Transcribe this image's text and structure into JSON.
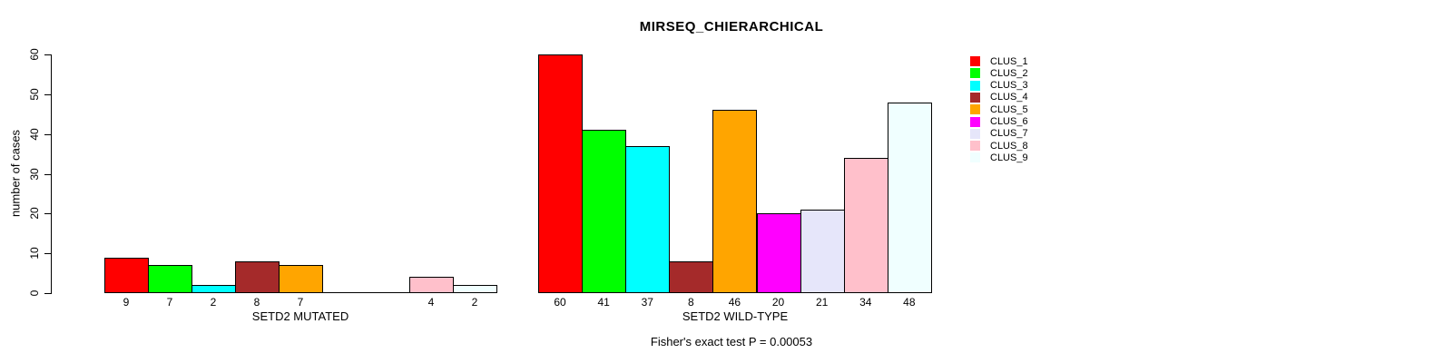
{
  "chart_data": {
    "type": "bar",
    "title": "MIRSEQ_CHIERARCHICAL",
    "ylabel": "number of cases",
    "xlabel": "",
    "ylim": [
      0,
      60
    ],
    "yticks": [
      "0",
      "10",
      "20",
      "30",
      "40",
      "50",
      "60"
    ],
    "grid": false,
    "legend_position": "right",
    "series_names": [
      "CLUS_1",
      "CLUS_2",
      "CLUS_3",
      "CLUS_4",
      "CLUS_5",
      "CLUS_6",
      "CLUS_7",
      "CLUS_8",
      "CLUS_9"
    ],
    "series_colors": [
      "#FF0000",
      "#00FF00",
      "#00FFFF",
      "#A52A2A",
      "#FFA500",
      "#FF00FF",
      "#E6E6FA",
      "#FFC0CB",
      "#F0FFFF"
    ],
    "groups": [
      {
        "label": "SETD2 MUTATED",
        "values": [
          9,
          7,
          2,
          8,
          7,
          0,
          0,
          4,
          2
        ],
        "bar_labels": [
          "9",
          "7",
          "2",
          "8",
          "7",
          "",
          "",
          "4",
          "2"
        ]
      },
      {
        "label": "SETD2 WILD-TYPE",
        "values": [
          60,
          41,
          37,
          8,
          46,
          20,
          21,
          34,
          48
        ],
        "bar_labels": [
          "60",
          "41",
          "37",
          "8",
          "46",
          "20",
          "21",
          "34",
          "48"
        ]
      }
    ],
    "annotation": "Fisher's exact test P = 0.00053"
  }
}
